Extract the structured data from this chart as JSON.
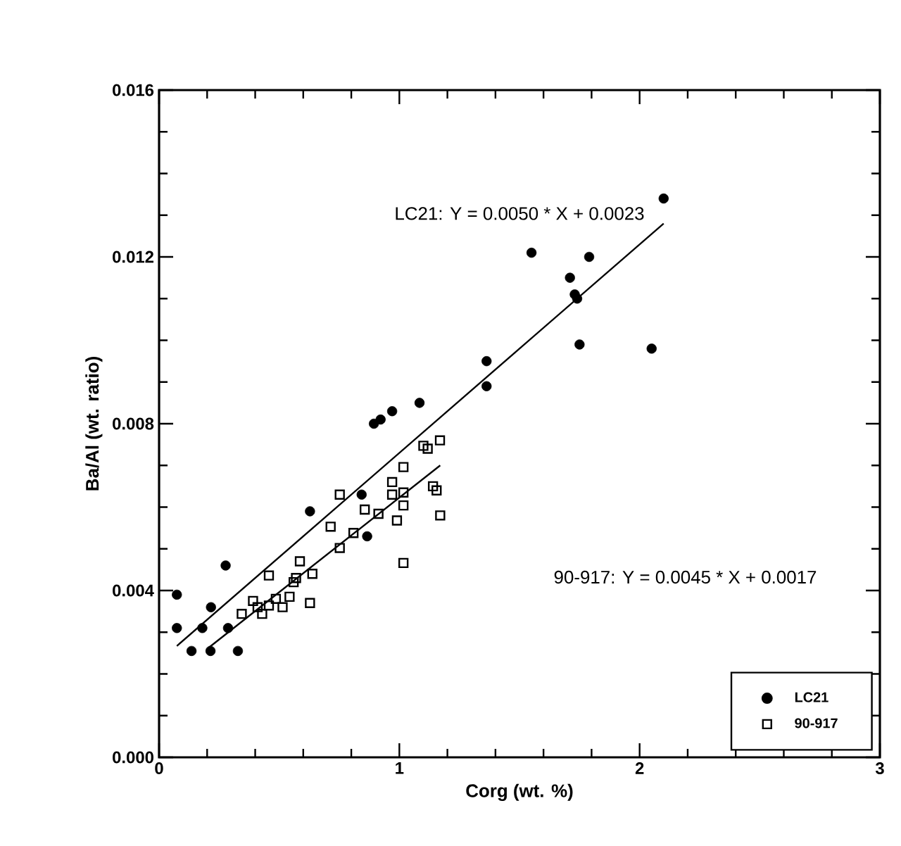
{
  "chart_data": {
    "type": "scatter",
    "xlabel": "Corg (wt. %)",
    "ylabel": "Ba/Al (wt. ratio)",
    "xlim": [
      0,
      3
    ],
    "ylim": [
      0,
      0.016
    ],
    "xticks": [
      0,
      1,
      2,
      3
    ],
    "yticks": [
      {
        "value": 0,
        "label": "0.000"
      },
      {
        "value": 0.004,
        "label": "0.004"
      },
      {
        "value": 0.008,
        "label": "0.008"
      },
      {
        "value": 0.012,
        "label": "0.012"
      },
      {
        "value": 0.016,
        "label": "0.016"
      }
    ],
    "legend": "bottom right",
    "grid": false,
    "annotations": [
      "LC21: Y = 0.0050 * X + 0.0023",
      "90-917: Y = 0.0045 * X + 0.0017"
    ],
    "series": [
      {
        "name": "LC21",
        "color": "#000000",
        "marker": "circle",
        "x": [
          0.074,
          0.074,
          0.135,
          0.214,
          0.216,
          0.18,
          0.287,
          0.277,
          0.328,
          0.628,
          0.866,
          0.894,
          0.922,
          0.97,
          1.084,
          0.843,
          1.363,
          1.363,
          1.55,
          1.71,
          1.73,
          1.74,
          1.79,
          1.75,
          2.05,
          2.1
        ],
        "values": [
          0.0039,
          0.0031,
          0.00255,
          0.00255,
          0.0036,
          0.0031,
          0.0031,
          0.0046,
          0.00255,
          0.0059,
          0.0053,
          0.008,
          0.0081,
          0.0083,
          0.0085,
          0.0063,
          0.0095,
          0.0089,
          0.0121,
          0.0115,
          0.0111,
          0.011,
          0.012,
          0.0099,
          0.0098,
          0.0134
        ]
      },
      {
        "name": "90-917",
        "color": "#000000",
        "marker": "square",
        "x": [
          0.457,
          0.628,
          0.586,
          0.638,
          0.57,
          0.56,
          0.344,
          0.391,
          0.429,
          0.457,
          0.486,
          0.514,
          0.543,
          0.41,
          0.714,
          0.752,
          0.752,
          0.809,
          0.856,
          0.913,
          0.97,
          1.017,
          0.99,
          1.017,
          1.017,
          1.1,
          1.169,
          1.118,
          1.14,
          1.155,
          1.17,
          0.97,
          1.017
        ],
        "values": [
          0.00436,
          0.0037,
          0.0047,
          0.0044,
          0.0043,
          0.0042,
          0.00344,
          0.00375,
          0.00344,
          0.00364,
          0.0038,
          0.0036,
          0.00385,
          0.0036,
          0.00553,
          0.0063,
          0.00502,
          0.00538,
          0.00594,
          0.00584,
          0.0066,
          0.00696,
          0.00568,
          0.00635,
          0.00466,
          0.00747,
          0.0076,
          0.0074,
          0.0065,
          0.0064,
          0.0058,
          0.0063,
          0.00604
        ]
      },
      {
        "type": "line",
        "color": "#000000",
        "x": [
          0.074,
          2.1
        ],
        "values": [
          0.00267,
          0.0128
        ]
      },
      {
        "type": "line",
        "color": "#000000",
        "x": [
          0.2,
          1.17
        ],
        "values": [
          0.0026,
          0.007
        ]
      }
    ]
  }
}
